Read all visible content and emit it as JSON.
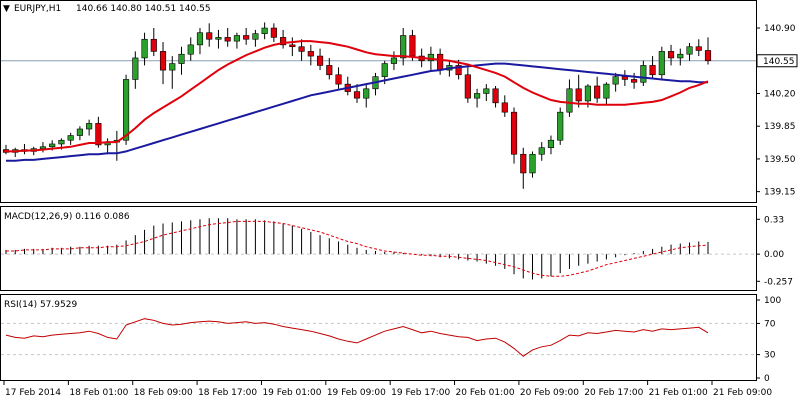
{
  "header": {
    "symbol": "EURJPY,H1",
    "ohlc": "140.66 140.80 140.51 140.55"
  },
  "colors": {
    "bull": "#2ca02c",
    "bear": "#e0000b",
    "ma_fast": "#e0000b",
    "ma_slow": "#1a1aa0",
    "macd_hist": "#000000",
    "macd_signal": "#e0000b",
    "rsi": "#c00000",
    "grid": "#c8c8c8",
    "price_box_bg": "#ffffff"
  },
  "chart_data": [
    {
      "type": "candlestick",
      "panel": "price",
      "title": "EURJPY,H1",
      "ylim": [
        139.05,
        141.05
      ],
      "yticks": [
        "140.90",
        "140.20",
        "139.85",
        "139.50",
        "139.15"
      ],
      "last_price": "140.55",
      "x_labels": [
        "17 Feb 2014",
        "18 Feb 01:00",
        "18 Feb 09:00",
        "18 Feb 17:00",
        "19 Feb 01:00",
        "19 Feb 09:00",
        "19 Feb 17:00",
        "20 Feb 01:00",
        "20 Feb 09:00",
        "20 Feb 17:00",
        "21 Feb 01:00",
        "21 Feb 09:00"
      ],
      "ohlc": [
        [
          139.6,
          139.65,
          139.55,
          139.57
        ],
        [
          139.57,
          139.62,
          139.52,
          139.6
        ],
        [
          139.6,
          139.66,
          139.55,
          139.58
        ],
        [
          139.58,
          139.63,
          139.54,
          139.61
        ],
        [
          139.61,
          139.68,
          139.57,
          139.63
        ],
        [
          139.63,
          139.7,
          139.59,
          139.66
        ],
        [
          139.66,
          139.72,
          139.6,
          139.7
        ],
        [
          139.7,
          139.78,
          139.65,
          139.75
        ],
        [
          139.75,
          139.85,
          139.7,
          139.82
        ],
        [
          139.82,
          139.92,
          139.75,
          139.88
        ],
        [
          139.88,
          139.95,
          139.62,
          139.65
        ],
        [
          139.65,
          139.72,
          139.55,
          139.68
        ],
        [
          139.68,
          139.8,
          139.48,
          139.7
        ],
        [
          139.7,
          140.4,
          139.65,
          140.35
        ],
        [
          140.35,
          140.65,
          140.25,
          140.58
        ],
        [
          140.58,
          140.85,
          140.5,
          140.78
        ],
        [
          140.78,
          140.9,
          140.6,
          140.65
        ],
        [
          140.65,
          140.75,
          140.3,
          140.45
        ],
        [
          140.45,
          140.6,
          140.25,
          140.52
        ],
        [
          140.52,
          140.7,
          140.4,
          140.62
        ],
        [
          140.62,
          140.8,
          140.55,
          140.72
        ],
        [
          140.72,
          140.9,
          140.62,
          140.85
        ],
        [
          140.85,
          140.95,
          140.7,
          140.78
        ],
        [
          140.78,
          140.88,
          140.68,
          140.8
        ],
        [
          140.8,
          140.9,
          140.7,
          140.76
        ],
        [
          140.76,
          140.85,
          140.68,
          140.82
        ],
        [
          140.82,
          140.9,
          140.72,
          140.78
        ],
        [
          140.78,
          140.88,
          140.7,
          140.84
        ],
        [
          140.84,
          140.96,
          140.78,
          140.9
        ],
        [
          140.9,
          140.95,
          140.75,
          140.8
        ],
        [
          140.8,
          140.88,
          140.68,
          140.72
        ],
        [
          140.72,
          140.8,
          140.6,
          140.7
        ],
        [
          140.7,
          140.78,
          140.55,
          140.65
        ],
        [
          140.65,
          140.72,
          140.5,
          140.6
        ],
        [
          140.6,
          140.68,
          140.45,
          140.5
        ],
        [
          140.5,
          140.58,
          140.35,
          140.4
        ],
        [
          140.4,
          140.48,
          140.25,
          140.3
        ],
        [
          140.3,
          140.38,
          140.18,
          140.22
        ],
        [
          140.22,
          140.3,
          140.1,
          140.15
        ],
        [
          140.15,
          140.3,
          140.05,
          140.25
        ],
        [
          140.25,
          140.42,
          140.18,
          140.38
        ],
        [
          140.38,
          140.55,
          140.3,
          140.52
        ],
        [
          140.52,
          140.65,
          140.45,
          140.58
        ],
        [
          140.58,
          140.9,
          140.5,
          140.82
        ],
        [
          140.82,
          140.88,
          140.55,
          140.6
        ],
        [
          140.6,
          140.68,
          140.48,
          140.55
        ],
        [
          140.55,
          140.7,
          140.45,
          140.62
        ],
        [
          140.62,
          140.68,
          140.4,
          140.45
        ],
        [
          140.45,
          140.55,
          140.38,
          140.5
        ],
        [
          140.5,
          140.56,
          140.35,
          140.4
        ],
        [
          140.4,
          140.48,
          140.1,
          140.15
        ],
        [
          140.15,
          140.25,
          140.05,
          140.2
        ],
        [
          140.2,
          140.3,
          140.12,
          140.25
        ],
        [
          140.25,
          140.28,
          140.05,
          140.1
        ],
        [
          140.1,
          140.18,
          139.95,
          140.0
        ],
        [
          140.0,
          140.05,
          139.45,
          139.55
        ],
        [
          139.55,
          139.62,
          139.18,
          139.35
        ],
        [
          139.35,
          139.58,
          139.3,
          139.55
        ],
        [
          139.55,
          139.68,
          139.48,
          139.62
        ],
        [
          139.62,
          139.75,
          139.55,
          139.7
        ],
        [
          139.7,
          140.05,
          139.65,
          140.0
        ],
        [
          140.0,
          140.35,
          139.95,
          140.25
        ],
        [
          140.25,
          140.4,
          140.05,
          140.12
        ],
        [
          140.12,
          140.3,
          140.05,
          140.28
        ],
        [
          140.28,
          140.38,
          140.1,
          140.15
        ],
        [
          140.15,
          140.32,
          140.08,
          140.3
        ],
        [
          140.3,
          140.42,
          140.22,
          140.38
        ],
        [
          140.38,
          140.45,
          140.28,
          140.35
        ],
        [
          140.35,
          140.42,
          140.25,
          140.32
        ],
        [
          140.32,
          140.55,
          140.28,
          140.5
        ],
        [
          140.5,
          140.6,
          140.35,
          140.4
        ],
        [
          140.4,
          140.7,
          140.35,
          140.65
        ],
        [
          140.65,
          140.72,
          140.5,
          140.58
        ],
        [
          140.58,
          140.68,
          140.5,
          140.62
        ],
        [
          140.62,
          140.74,
          140.55,
          140.7
        ],
        [
          140.7,
          140.78,
          140.6,
          140.66
        ],
        [
          140.66,
          140.8,
          140.51,
          140.55
        ]
      ],
      "ma_fast": [
        139.58,
        139.58,
        139.59,
        139.59,
        139.6,
        139.61,
        139.62,
        139.63,
        139.65,
        139.67,
        139.67,
        139.68,
        139.68,
        139.75,
        139.83,
        139.92,
        139.99,
        140.05,
        140.11,
        140.17,
        140.24,
        140.31,
        140.38,
        140.45,
        140.51,
        140.56,
        140.61,
        140.65,
        140.69,
        140.72,
        140.74,
        140.75,
        140.76,
        140.76,
        140.75,
        140.74,
        140.72,
        140.7,
        140.67,
        140.64,
        140.62,
        140.61,
        140.6,
        140.6,
        140.59,
        140.58,
        140.57,
        140.56,
        140.55,
        140.53,
        140.51,
        140.48,
        140.45,
        140.42,
        140.38,
        140.32,
        140.26,
        140.21,
        140.17,
        140.13,
        140.11,
        140.1,
        140.09,
        140.09,
        140.08,
        140.08,
        140.08,
        140.08,
        140.09,
        140.1,
        140.11,
        140.13,
        140.17,
        140.21,
        140.26,
        140.29,
        140.33
      ],
      "ma_slow": [
        139.48,
        139.48,
        139.49,
        139.49,
        139.5,
        139.51,
        139.52,
        139.53,
        139.54,
        139.55,
        139.55,
        139.56,
        139.56,
        139.58,
        139.61,
        139.64,
        139.67,
        139.7,
        139.73,
        139.76,
        139.79,
        139.82,
        139.85,
        139.88,
        139.91,
        139.94,
        139.97,
        140.0,
        140.03,
        140.06,
        140.09,
        140.12,
        140.15,
        140.18,
        140.2,
        140.22,
        140.24,
        140.26,
        140.28,
        140.3,
        140.32,
        140.34,
        140.36,
        140.38,
        140.4,
        140.42,
        140.44,
        140.45,
        140.47,
        140.48,
        140.49,
        140.5,
        140.51,
        140.52,
        140.52,
        140.51,
        140.5,
        140.49,
        140.48,
        140.47,
        140.46,
        140.45,
        140.44,
        140.43,
        140.42,
        140.41,
        140.4,
        140.39,
        140.38,
        140.37,
        140.36,
        140.35,
        140.34,
        140.33,
        140.33,
        140.32,
        140.32
      ]
    },
    {
      "type": "macd",
      "panel": "macd",
      "title": "MACD(12,26,9) 0.116 0.086",
      "ylim": [
        -0.33,
        0.38
      ],
      "yticks": [
        "0.33",
        "0.00",
        "-0.257"
      ],
      "histogram": [
        0.04,
        0.04,
        0.05,
        0.05,
        0.05,
        0.06,
        0.06,
        0.07,
        0.07,
        0.08,
        0.08,
        0.08,
        0.09,
        0.13,
        0.18,
        0.23,
        0.27,
        0.29,
        0.3,
        0.31,
        0.32,
        0.33,
        0.34,
        0.34,
        0.34,
        0.33,
        0.33,
        0.33,
        0.32,
        0.31,
        0.29,
        0.27,
        0.24,
        0.21,
        0.18,
        0.15,
        0.12,
        0.09,
        0.06,
        0.04,
        0.03,
        0.02,
        0.02,
        0.01,
        0.0,
        -0.01,
        -0.02,
        -0.03,
        -0.04,
        -0.05,
        -0.06,
        -0.07,
        -0.09,
        -0.11,
        -0.14,
        -0.19,
        -0.23,
        -0.24,
        -0.23,
        -0.21,
        -0.18,
        -0.14,
        -0.11,
        -0.09,
        -0.07,
        -0.05,
        -0.03,
        -0.01,
        0.01,
        0.03,
        0.05,
        0.07,
        0.09,
        0.1,
        0.11,
        0.12,
        0.116
      ],
      "signal": [
        0.03,
        0.03,
        0.04,
        0.04,
        0.04,
        0.05,
        0.05,
        0.05,
        0.06,
        0.06,
        0.06,
        0.07,
        0.07,
        0.08,
        0.1,
        0.12,
        0.15,
        0.18,
        0.2,
        0.22,
        0.24,
        0.26,
        0.28,
        0.29,
        0.3,
        0.31,
        0.31,
        0.31,
        0.31,
        0.3,
        0.29,
        0.27,
        0.25,
        0.23,
        0.21,
        0.18,
        0.15,
        0.12,
        0.1,
        0.07,
        0.05,
        0.03,
        0.02,
        0.01,
        0.0,
        -0.01,
        -0.01,
        -0.02,
        -0.02,
        -0.03,
        -0.04,
        -0.05,
        -0.06,
        -0.08,
        -0.1,
        -0.12,
        -0.15,
        -0.18,
        -0.2,
        -0.21,
        -0.21,
        -0.2,
        -0.18,
        -0.16,
        -0.13,
        -0.1,
        -0.08,
        -0.06,
        -0.04,
        -0.02,
        0.0,
        0.02,
        0.04,
        0.06,
        0.07,
        0.08,
        0.086
      ]
    },
    {
      "type": "line",
      "panel": "rsi",
      "title": "RSI(14) 57.9529",
      "ylim": [
        0,
        100
      ],
      "yticks": [
        "100",
        "70",
        "30",
        "0"
      ],
      "levels": [
        70,
        30
      ],
      "values": [
        55,
        52,
        51,
        54,
        53,
        55,
        56,
        57,
        58,
        60,
        57,
        52,
        50,
        68,
        72,
        76,
        74,
        70,
        68,
        69,
        71,
        72,
        73,
        72,
        70,
        71,
        72,
        70,
        71,
        69,
        66,
        64,
        62,
        60,
        57,
        54,
        50,
        47,
        45,
        50,
        55,
        60,
        63,
        66,
        62,
        58,
        60,
        57,
        55,
        53,
        52,
        48,
        50,
        51,
        46,
        38,
        28,
        36,
        40,
        42,
        48,
        55,
        54,
        58,
        57,
        59,
        61,
        60,
        59,
        62,
        60,
        63,
        62,
        63,
        64,
        65,
        58
      ]
    }
  ]
}
